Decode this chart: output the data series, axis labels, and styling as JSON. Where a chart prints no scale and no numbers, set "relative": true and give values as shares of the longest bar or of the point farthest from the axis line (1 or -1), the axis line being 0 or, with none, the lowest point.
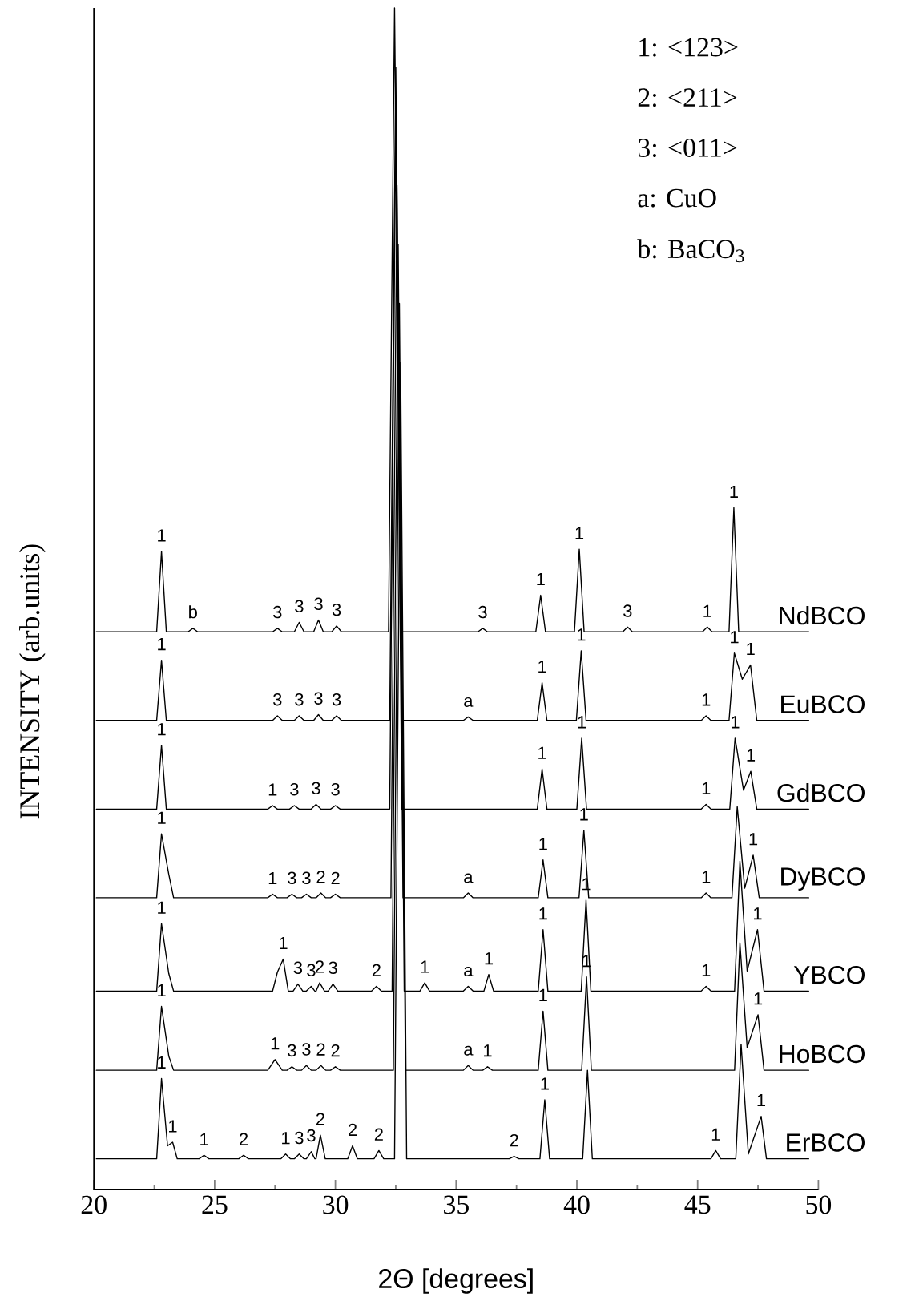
{
  "chart_data": {
    "type": "line",
    "relative": true,
    "xlabel": "2Θ [degrees]",
    "ylabel": "INTENSITY (arb.units)",
    "xlim": [
      20,
      50
    ],
    "xticks": [
      20,
      25,
      30,
      35,
      40,
      45,
      50
    ],
    "tick_labels": "x",
    "series": [
      {
        "name": "NdBCO",
        "color": "#000000",
        "x": [
          20.1,
          22.6,
          22.8,
          23.0,
          23.9,
          24.1,
          24.3,
          27.4,
          27.6,
          27.8,
          28.3,
          28.5,
          28.7,
          29.1,
          29.3,
          29.5,
          29.85,
          30.05,
          30.25,
          32.2,
          32.45,
          32.7,
          35.9,
          36.1,
          36.3,
          38.3,
          38.5,
          38.7,
          39.9,
          40.1,
          40.3,
          41.9,
          42.1,
          42.3,
          45.2,
          45.4,
          45.6,
          46.3,
          46.5,
          46.7,
          49.6
        ],
        "values": [
          0.472,
          0.472,
          0.54,
          0.472,
          0.472,
          0.475,
          0.472,
          0.472,
          0.475,
          0.472,
          0.472,
          0.48,
          0.472,
          0.472,
          0.482,
          0.472,
          0.472,
          0.477,
          0.472,
          0.472,
          1.0,
          0.472,
          0.472,
          0.475,
          0.472,
          0.472,
          0.503,
          0.472,
          0.472,
          0.542,
          0.472,
          0.472,
          0.476,
          0.472,
          0.472,
          0.476,
          0.472,
          0.472,
          0.577,
          0.472,
          0.472
        ]
      },
      {
        "name": "EuBCO",
        "color": "#000000",
        "x": [
          20.1,
          22.6,
          22.8,
          23.0,
          27.4,
          27.6,
          27.8,
          28.3,
          28.5,
          28.7,
          29.1,
          29.3,
          29.5,
          29.85,
          30.05,
          30.25,
          32.25,
          32.5,
          32.75,
          35.3,
          35.5,
          35.7,
          38.36,
          38.56,
          38.76,
          39.98,
          40.18,
          40.38,
          45.15,
          45.35,
          45.55,
          46.3,
          46.52,
          46.85,
          47.19,
          47.45,
          49.6
        ],
        "values": [
          0.397,
          0.397,
          0.448,
          0.397,
          0.397,
          0.401,
          0.397,
          0.397,
          0.401,
          0.397,
          0.397,
          0.402,
          0.397,
          0.397,
          0.401,
          0.397,
          0.397,
          0.95,
          0.397,
          0.397,
          0.4,
          0.397,
          0.397,
          0.429,
          0.397,
          0.397,
          0.456,
          0.397,
          0.397,
          0.401,
          0.397,
          0.397,
          0.454,
          0.432,
          0.444,
          0.397,
          0.397
        ]
      },
      {
        "name": "GdBCO",
        "color": "#000000",
        "x": [
          20.1,
          22.6,
          22.8,
          23.0,
          27.2,
          27.4,
          27.6,
          28.1,
          28.3,
          28.5,
          29.0,
          29.2,
          29.4,
          29.8,
          30.0,
          30.2,
          32.25,
          32.5,
          32.75,
          38.36,
          38.56,
          38.76,
          40.0,
          40.2,
          40.4,
          45.15,
          45.35,
          45.55,
          46.33,
          46.55,
          46.9,
          47.2,
          47.45,
          49.6
        ],
        "values": [
          0.322,
          0.322,
          0.376,
          0.322,
          0.322,
          0.325,
          0.322,
          0.322,
          0.325,
          0.322,
          0.322,
          0.326,
          0.322,
          0.322,
          0.325,
          0.322,
          0.322,
          0.9,
          0.322,
          0.322,
          0.356,
          0.322,
          0.322,
          0.382,
          0.322,
          0.322,
          0.326,
          0.322,
          0.322,
          0.382,
          0.338,
          0.354,
          0.322,
          0.322
        ]
      },
      {
        "name": "DyBCO",
        "color": "#000000",
        "x": [
          20.1,
          22.6,
          22.8,
          23.1,
          23.3,
          27.2,
          27.4,
          27.6,
          28.0,
          28.2,
          28.4,
          28.6,
          28.8,
          29.0,
          29.2,
          29.4,
          29.6,
          29.8,
          30.0,
          30.2,
          32.3,
          32.55,
          32.8,
          35.3,
          35.5,
          35.7,
          38.4,
          38.6,
          38.8,
          40.09,
          40.29,
          40.49,
          45.15,
          45.35,
          45.55,
          46.42,
          46.64,
          46.95,
          47.3,
          47.55,
          49.6
        ],
        "values": [
          0.247,
          0.247,
          0.301,
          0.267,
          0.247,
          0.247,
          0.25,
          0.247,
          0.247,
          0.25,
          0.247,
          0.247,
          0.25,
          0.247,
          0.247,
          0.251,
          0.247,
          0.247,
          0.25,
          0.247,
          0.247,
          0.85,
          0.247,
          0.247,
          0.251,
          0.247,
          0.247,
          0.279,
          0.247,
          0.247,
          0.304,
          0.247,
          0.247,
          0.251,
          0.247,
          0.247,
          0.324,
          0.255,
          0.283,
          0.247,
          0.247
        ]
      },
      {
        "name": "YBCO",
        "color": "#000000",
        "x": [
          20.1,
          22.6,
          22.8,
          23.1,
          23.3,
          27.4,
          27.6,
          27.84,
          28.05,
          28.25,
          28.45,
          28.65,
          28.8,
          29.0,
          29.15,
          29.2,
          29.35,
          29.55,
          29.7,
          29.9,
          30.1,
          31.5,
          31.7,
          31.9,
          32.35,
          32.6,
          32.85,
          33.5,
          33.7,
          33.9,
          35.3,
          35.5,
          35.7,
          36.15,
          36.35,
          36.55,
          38.4,
          38.6,
          38.8,
          40.18,
          40.38,
          40.58,
          45.15,
          45.35,
          45.55,
          46.53,
          46.75,
          47.05,
          47.48,
          47.75,
          49.6
        ],
        "values": [
          0.168,
          0.168,
          0.225,
          0.183,
          0.168,
          0.168,
          0.184,
          0.195,
          0.168,
          0.168,
          0.174,
          0.168,
          0.168,
          0.172,
          0.168,
          0.168,
          0.175,
          0.168,
          0.168,
          0.174,
          0.168,
          0.168,
          0.172,
          0.168,
          0.168,
          0.8,
          0.168,
          0.168,
          0.175,
          0.168,
          0.168,
          0.172,
          0.168,
          0.168,
          0.182,
          0.168,
          0.168,
          0.22,
          0.168,
          0.168,
          0.245,
          0.168,
          0.168,
          0.172,
          0.168,
          0.168,
          0.278,
          0.185,
          0.22,
          0.168,
          0.168
        ]
      },
      {
        "name": "HoBCO",
        "color": "#000000",
        "x": [
          20.1,
          22.6,
          22.8,
          23.1,
          23.3,
          27.2,
          27.5,
          27.8,
          28.0,
          28.2,
          28.4,
          28.6,
          28.8,
          29.0,
          29.2,
          29.4,
          29.6,
          29.8,
          30.0,
          30.2,
          32.4,
          32.65,
          32.9,
          35.3,
          35.5,
          35.7,
          36.1,
          36.3,
          36.5,
          38.4,
          38.6,
          38.8,
          40.2,
          40.4,
          40.6,
          46.53,
          46.75,
          47.05,
          47.5,
          47.75,
          49.6
        ],
        "values": [
          0.101,
          0.101,
          0.155,
          0.113,
          0.101,
          0.101,
          0.11,
          0.101,
          0.101,
          0.104,
          0.101,
          0.101,
          0.105,
          0.101,
          0.101,
          0.105,
          0.101,
          0.101,
          0.104,
          0.101,
          0.101,
          0.75,
          0.101,
          0.101,
          0.105,
          0.101,
          0.101,
          0.104,
          0.101,
          0.101,
          0.151,
          0.101,
          0.101,
          0.18,
          0.101,
          0.101,
          0.209,
          0.12,
          0.148,
          0.101,
          0.101
        ]
      },
      {
        "name": "ErBCO",
        "color": "#000000",
        "x": [
          20.1,
          22.6,
          22.8,
          23.05,
          23.26,
          23.45,
          24.36,
          24.56,
          24.76,
          26.0,
          26.2,
          26.4,
          27.74,
          27.94,
          28.14,
          28.3,
          28.5,
          28.7,
          28.8,
          29.0,
          29.15,
          29.2,
          29.38,
          29.58,
          30.51,
          30.71,
          30.91,
          31.6,
          31.8,
          32.0,
          32.45,
          32.7,
          32.95,
          37.2,
          37.4,
          37.6,
          38.47,
          38.67,
          38.87,
          40.24,
          40.44,
          40.64,
          45.55,
          45.75,
          45.95,
          46.58,
          46.8,
          47.1,
          47.63,
          47.85,
          49.6
        ],
        "values": [
          0.026,
          0.026,
          0.094,
          0.037,
          0.04,
          0.026,
          0.026,
          0.029,
          0.026,
          0.026,
          0.029,
          0.026,
          0.026,
          0.03,
          0.026,
          0.026,
          0.03,
          0.026,
          0.026,
          0.032,
          0.026,
          0.026,
          0.046,
          0.026,
          0.026,
          0.037,
          0.026,
          0.026,
          0.033,
          0.026,
          0.026,
          0.7,
          0.026,
          0.026,
          0.028,
          0.026,
          0.026,
          0.076,
          0.026,
          0.026,
          0.101,
          0.026,
          0.026,
          0.033,
          0.026,
          0.026,
          0.123,
          0.03,
          0.062,
          0.026,
          0.026
        ]
      }
    ],
    "annotations": [
      "1:  <123>",
      "2:  <211>",
      "3:  <011>",
      "a:  CuO",
      "b:  BaCO$_{3}$",
      {
        "text": "1",
        "x": 22.8,
        "y": 0.54
      },
      {
        "text": "b",
        "x": 24.1,
        "y": 0.475
      },
      {
        "text": "3",
        "x": 27.6,
        "y": 0.475
      },
      {
        "text": "3",
        "x": 28.5,
        "y": 0.48
      },
      {
        "text": "3",
        "x": 29.3,
        "y": 0.482
      },
      {
        "text": "3",
        "x": 30.05,
        "y": 0.477
      },
      {
        "text": "3",
        "x": 36.1,
        "y": 0.475
      },
      {
        "text": "1",
        "x": 38.5,
        "y": 0.503
      },
      {
        "text": "1",
        "x": 40.1,
        "y": 0.542
      },
      {
        "text": "3",
        "x": 42.1,
        "y": 0.476
      },
      {
        "text": "1",
        "x": 45.4,
        "y": 0.476
      },
      {
        "text": "1",
        "x": 46.5,
        "y": 0.577
      },
      {
        "text": "1",
        "x": 22.8,
        "y": 0.448
      },
      {
        "text": "3",
        "x": 27.6,
        "y": 0.401
      },
      {
        "text": "3",
        "x": 28.5,
        "y": 0.401
      },
      {
        "text": "3",
        "x": 29.3,
        "y": 0.402
      },
      {
        "text": "3",
        "x": 30.05,
        "y": 0.401
      },
      {
        "text": "a",
        "x": 35.5,
        "y": 0.4
      },
      {
        "text": "1",
        "x": 38.56,
        "y": 0.429
      },
      {
        "text": "1",
        "x": 40.18,
        "y": 0.456
      },
      {
        "text": "1",
        "x": 45.35,
        "y": 0.401
      },
      {
        "text": "1",
        "x": 46.52,
        "y": 0.454
      },
      {
        "text": "1",
        "x": 47.19,
        "y": 0.444
      },
      {
        "text": "1",
        "x": 22.8,
        "y": 0.376
      },
      {
        "text": "1",
        "x": 27.4,
        "y": 0.325
      },
      {
        "text": "3",
        "x": 28.3,
        "y": 0.325
      },
      {
        "text": "3",
        "x": 29.2,
        "y": 0.326
      },
      {
        "text": "3",
        "x": 30.0,
        "y": 0.325
      },
      {
        "text": "1",
        "x": 38.56,
        "y": 0.356
      },
      {
        "text": "1",
        "x": 40.2,
        "y": 0.382
      },
      {
        "text": "1",
        "x": 45.35,
        "y": 0.326
      },
      {
        "text": "1",
        "x": 46.55,
        "y": 0.382
      },
      {
        "text": "1",
        "x": 47.2,
        "y": 0.354
      },
      {
        "text": "1",
        "x": 22.8,
        "y": 0.301
      },
      {
        "text": "1",
        "x": 27.4,
        "y": 0.25
      },
      {
        "text": "3",
        "x": 28.2,
        "y": 0.25
      },
      {
        "text": "3",
        "x": 28.8,
        "y": 0.25
      },
      {
        "text": "2",
        "x": 29.4,
        "y": 0.251
      },
      {
        "text": "2",
        "x": 30.0,
        "y": 0.25
      },
      {
        "text": "a",
        "x": 35.5,
        "y": 0.251
      },
      {
        "text": "1",
        "x": 38.6,
        "y": 0.279
      },
      {
        "text": "1",
        "x": 40.29,
        "y": 0.304
      },
      {
        "text": "1",
        "x": 45.35,
        "y": 0.251
      },
      {
        "text": "1",
        "x": 47.3,
        "y": 0.283
      },
      {
        "text": "1",
        "x": 22.8,
        "y": 0.225
      },
      {
        "text": "1",
        "x": 27.84,
        "y": 0.195
      },
      {
        "text": "3",
        "x": 28.45,
        "y": 0.174
      },
      {
        "text": "3",
        "x": 29.0,
        "y": 0.172
      },
      {
        "text": "2",
        "x": 29.35,
        "y": 0.175
      },
      {
        "text": "3",
        "x": 29.9,
        "y": 0.174
      },
      {
        "text": "2",
        "x": 31.7,
        "y": 0.172
      },
      {
        "text": "1",
        "x": 33.7,
        "y": 0.175
      },
      {
        "text": "a",
        "x": 35.5,
        "y": 0.172
      },
      {
        "text": "1",
        "x": 36.35,
        "y": 0.182
      },
      {
        "text": "1",
        "x": 38.6,
        "y": 0.22
      },
      {
        "text": "1",
        "x": 40.38,
        "y": 0.245
      },
      {
        "text": "1",
        "x": 45.35,
        "y": 0.172
      },
      {
        "text": "1",
        "x": 47.48,
        "y": 0.22
      },
      {
        "text": "1",
        "x": 22.8,
        "y": 0.155
      },
      {
        "text": "1",
        "x": 27.5,
        "y": 0.11
      },
      {
        "text": "3",
        "x": 28.2,
        "y": 0.104
      },
      {
        "text": "3",
        "x": 28.8,
        "y": 0.105
      },
      {
        "text": "2",
        "x": 29.4,
        "y": 0.105
      },
      {
        "text": "2",
        "x": 30.0,
        "y": 0.104
      },
      {
        "text": "a",
        "x": 35.5,
        "y": 0.105
      },
      {
        "text": "1",
        "x": 36.3,
        "y": 0.104
      },
      {
        "text": "1",
        "x": 38.6,
        "y": 0.151
      },
      {
        "text": "1",
        "x": 40.4,
        "y": 0.18
      },
      {
        "text": "1",
        "x": 47.5,
        "y": 0.148
      },
      {
        "text": "1",
        "x": 22.8,
        "y": 0.094
      },
      {
        "text": "1",
        "x": 23.26,
        "y": 0.04
      },
      {
        "text": "1",
        "x": 24.56,
        "y": 0.029
      },
      {
        "text": "2",
        "x": 26.2,
        "y": 0.029
      },
      {
        "text": "1",
        "x": 27.94,
        "y": 0.03
      },
      {
        "text": "3",
        "x": 28.5,
        "y": 0.03
      },
      {
        "text": "3",
        "x": 29.0,
        "y": 0.032
      },
      {
        "text": "2",
        "x": 29.38,
        "y": 0.046
      },
      {
        "text": "2",
        "x": 30.71,
        "y": 0.037
      },
      {
        "text": "2",
        "x": 31.8,
        "y": 0.033
      },
      {
        "text": "2",
        "x": 37.4,
        "y": 0.028
      },
      {
        "text": "1",
        "x": 38.67,
        "y": 0.076
      },
      {
        "text": "1",
        "x": 45.75,
        "y": 0.033
      },
      {
        "text": "1",
        "x": 47.63,
        "y": 0.062
      }
    ]
  }
}
